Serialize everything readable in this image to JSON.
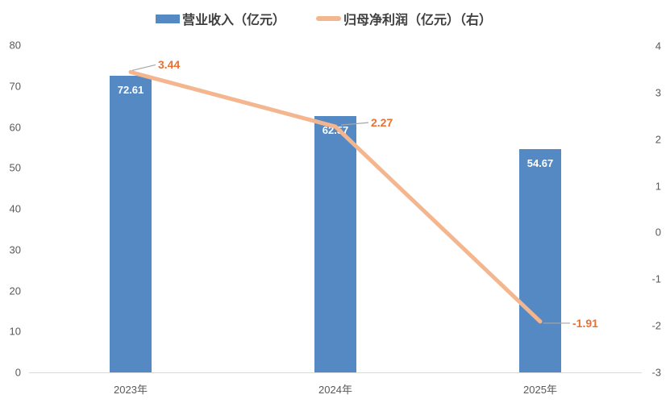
{
  "legend": {
    "items": [
      {
        "label": "营业收入（亿元）",
        "swatch": "bar-swatch",
        "color": "#5489C4"
      },
      {
        "label": "归母净利润（亿元）（右）",
        "swatch": "line-swatch",
        "color": "#F4B68E"
      }
    ]
  },
  "chart_data": {
    "type": "combo-bar-line",
    "title": "",
    "categories": [
      "2023年",
      "2024年",
      "2025年"
    ],
    "series": [
      {
        "name": "营业收入（亿元）",
        "type": "bar",
        "axis": "left",
        "values": [
          72.61,
          62.57,
          54.67
        ],
        "labels": [
          "72.61",
          "62.57",
          "54.67"
        ],
        "color": "#5489C4",
        "label_color": "#FFFFFF"
      },
      {
        "name": "归母净利润（亿元）（右）",
        "type": "line",
        "axis": "right",
        "values": [
          3.44,
          2.27,
          -1.91
        ],
        "labels": [
          "3.44",
          "2.27",
          "-1.91"
        ],
        "color": "#F4B68E",
        "label_color": "#E97132"
      }
    ],
    "left_axis": {
      "min": 0,
      "max": 80,
      "step": 10,
      "ticks": [
        "0",
        "10",
        "20",
        "30",
        "40",
        "50",
        "60",
        "70",
        "80"
      ]
    },
    "right_axis": {
      "min": -3,
      "max": 4,
      "step": 1,
      "ticks": [
        "-3",
        "-2",
        "-1",
        "0",
        "1",
        "2",
        "3",
        "4"
      ]
    },
    "grid": false,
    "legend_position": "top",
    "background": "#FFFFFF",
    "axis_line_color": "#D9D9D9",
    "tick_label_color": "#595959",
    "leader_line_color": "#A6A6A6"
  }
}
